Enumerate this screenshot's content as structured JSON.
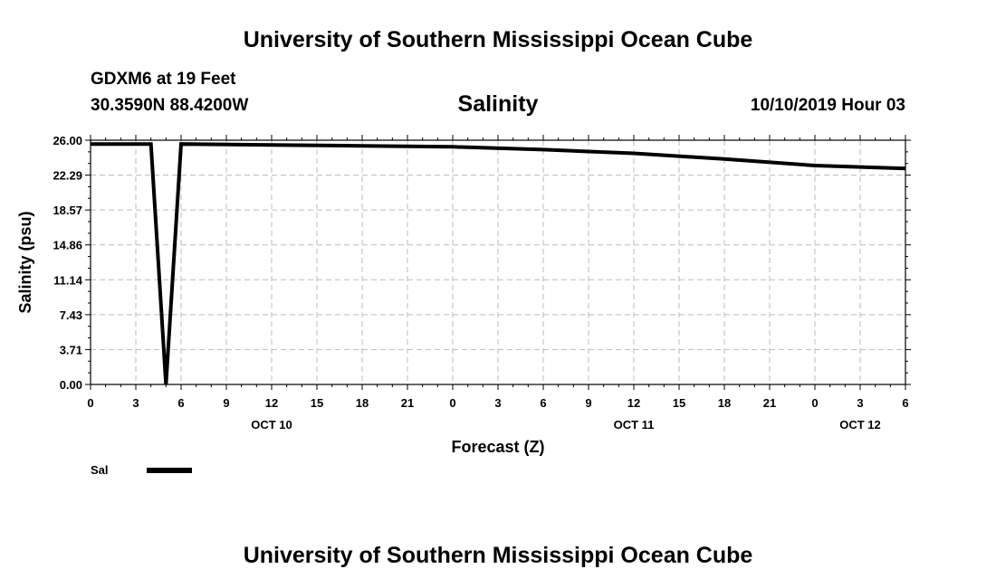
{
  "header": {
    "title_top": "University of Southern Mississippi Ocean Cube",
    "title_bottom": "University of Southern Mississippi Ocean Cube",
    "station": "GDXM6 at 19 Feet",
    "coords": "30.3590N 88.4200W",
    "datetime": "10/10/2019 Hour 03"
  },
  "chart_data": {
    "type": "line",
    "title": "Salinity",
    "ylabel": "Salinity (psu)",
    "xlabel": "Forecast (Z)",
    "ylim": [
      0,
      26.0
    ],
    "xlim_hours": [
      0,
      54
    ],
    "y_ticks": [
      "0.00",
      "3.71",
      "7.43",
      "11.14",
      "14.86",
      "18.57",
      "22.29",
      "26.00"
    ],
    "x_tick_labels": [
      "0",
      "3",
      "6",
      "9",
      "12",
      "15",
      "18",
      "21",
      "0",
      "3",
      "6",
      "9",
      "12",
      "15",
      "18",
      "21",
      "0",
      "3",
      "6"
    ],
    "date_labels": [
      {
        "label": "OCT 10",
        "hour": 12
      },
      {
        "label": "OCT 11",
        "hour": 36
      },
      {
        "label": "OCT 12",
        "hour": 51
      }
    ],
    "grid": true,
    "series": [
      {
        "name": "Sal",
        "color": "#000000",
        "x": [
          0,
          4,
          5,
          6,
          12,
          18,
          24,
          30,
          36,
          42,
          48,
          54
        ],
        "y": [
          25.6,
          25.6,
          0.0,
          25.6,
          25.5,
          25.4,
          25.3,
          25.0,
          24.6,
          24.0,
          23.3,
          23.0
        ]
      }
    ],
    "legend": [
      {
        "label": "Sal"
      }
    ]
  }
}
